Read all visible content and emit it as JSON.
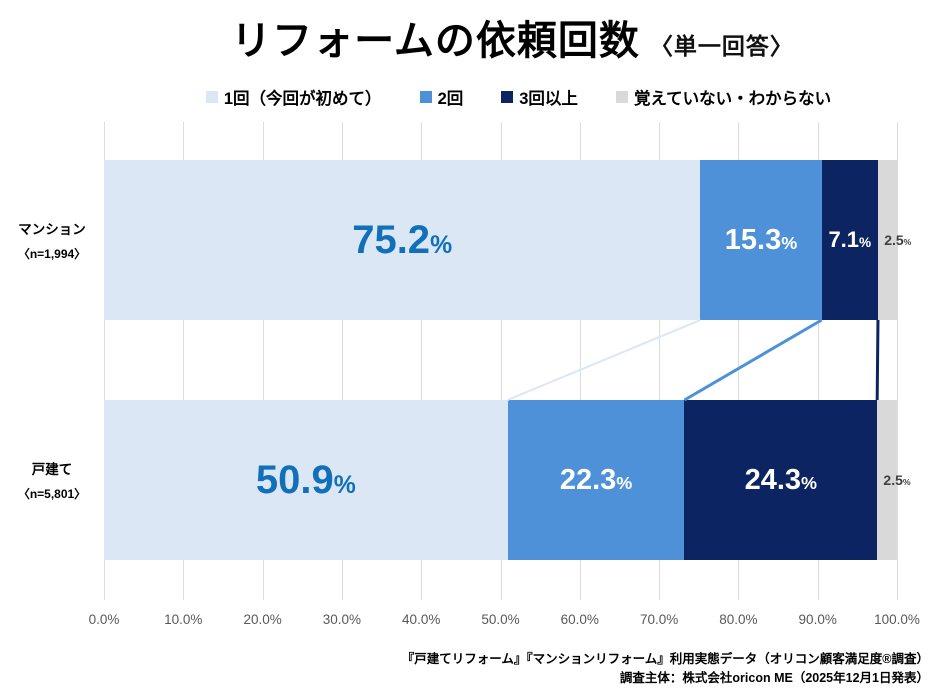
{
  "title": {
    "main": "リフォームの依頼回数",
    "sub": "〈単一回答〉"
  },
  "legend": [
    {
      "label": "1回（今回が初めて）",
      "color": "#dbe7f5"
    },
    {
      "label": "2回",
      "color": "#4e91d8"
    },
    {
      "label": "3回以上",
      "color": "#0c2461"
    },
    {
      "label": "覚えていない・わからない",
      "color": "#d9d9d9"
    }
  ],
  "chart_data": {
    "type": "bar",
    "orientation": "horizontal",
    "stacked": true,
    "categories": [
      "マンション",
      "戸建て"
    ],
    "category_sublabels": [
      "〈n=1,994〉",
      "〈n=5,801〉"
    ],
    "series": [
      {
        "name": "1回（今回が初めて）",
        "color": "#dbe7f5",
        "label_color": "#1270b8",
        "values": [
          75.2,
          50.9
        ]
      },
      {
        "name": "2回",
        "color": "#4e91d8",
        "label_color": "#ffffff",
        "values": [
          15.3,
          22.3
        ]
      },
      {
        "name": "3回以上",
        "color": "#0c2461",
        "label_color": "#ffffff",
        "values": [
          7.1,
          24.3
        ]
      },
      {
        "name": "覚えていない・わからない",
        "color": "#d9d9d9",
        "label_color": "#404040",
        "values": [
          2.5,
          2.5
        ]
      }
    ],
    "data_labels": [
      [
        "75.2",
        "15.3",
        "7.1",
        "2.5"
      ],
      [
        "50.9",
        "22.3",
        "24.3",
        "2.5"
      ]
    ],
    "percent_suffix": "%",
    "xlim": [
      0,
      100
    ],
    "x_ticks": [
      "0.0%",
      "10.0%",
      "20.0%",
      "30.0%",
      "40.0%",
      "50.0%",
      "60.0%",
      "70.0%",
      "80.0%",
      "90.0%",
      "100.0%"
    ],
    "grid": "vertical",
    "legend_position": "top"
  },
  "colors": {
    "gridline": "#dcdcdc",
    "axis_text": "#595959"
  },
  "footer": {
    "line1": "『戸建てリフォーム』『マンションリフォーム』利用実態データ（オリコン顧客満足度®調査）",
    "line2": "調査主体：株式会社oricon ME（2025年12月1日発表）"
  }
}
